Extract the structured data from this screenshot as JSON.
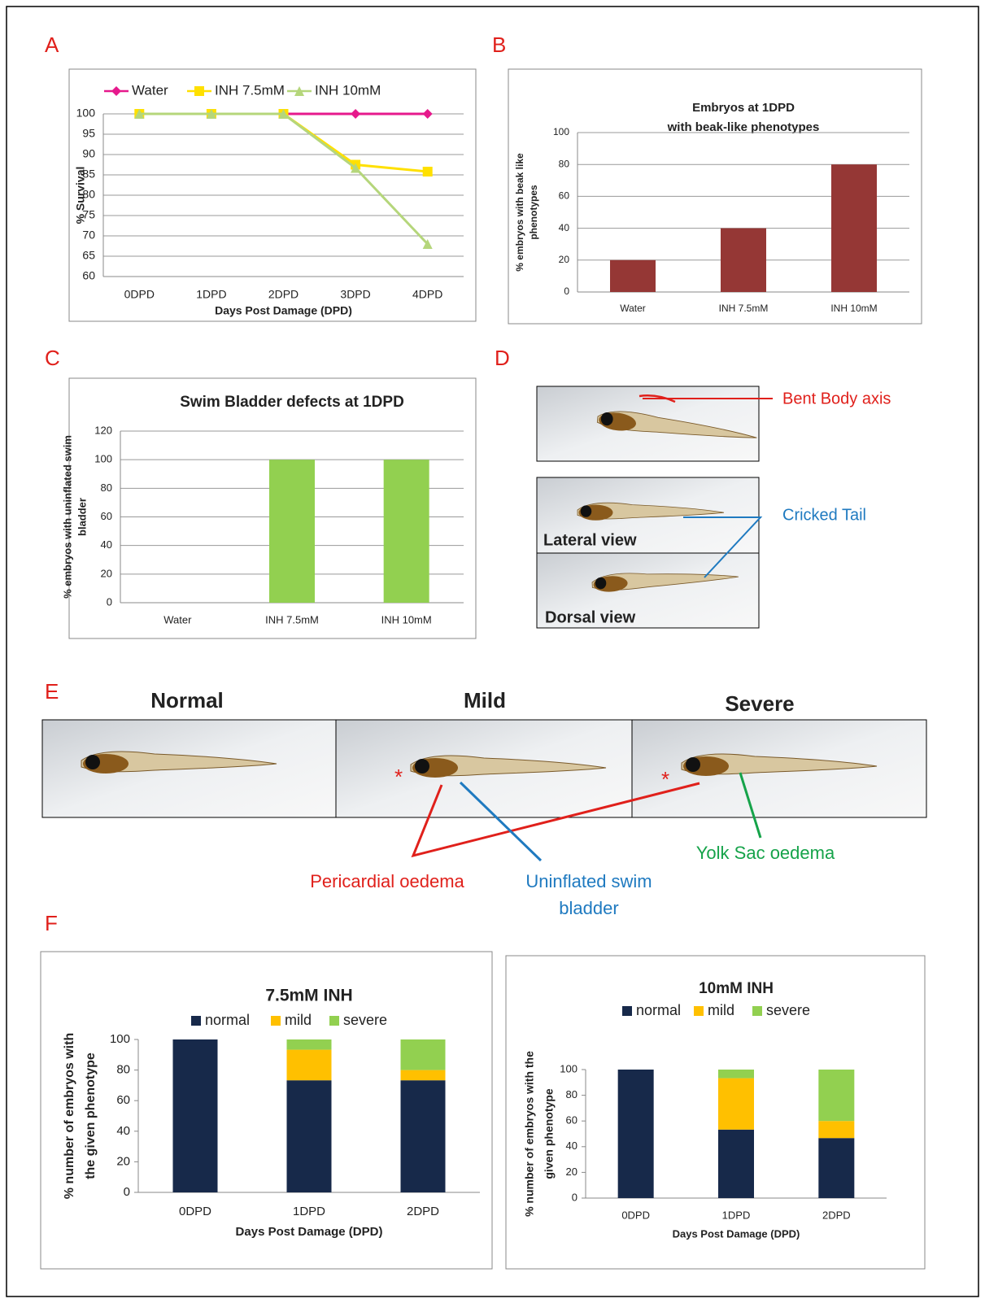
{
  "panel_labels": [
    "A",
    "B",
    "C",
    "D",
    "E",
    "F"
  ],
  "chart_data": [
    {
      "type": "line",
      "categories": [
        "0DPD",
        "1DPD",
        "2DPD",
        "3DPD",
        "4DPD"
      ],
      "series": [
        {
          "name": "Water",
          "color": "#e6198c",
          "marker": "diamond",
          "values": [
            100,
            100,
            100,
            100,
            100
          ]
        },
        {
          "name": "INH 7.5mM",
          "color": "#ffe000",
          "marker": "square",
          "values": [
            100,
            100,
            100,
            87.5,
            85.8
          ]
        },
        {
          "name": "INH 10mM",
          "color": "#b5d67b",
          "marker": "triangle",
          "values": [
            100,
            100,
            100,
            86.7,
            68
          ]
        }
      ],
      "ylim": [
        60,
        100
      ],
      "yticks": [
        60,
        65,
        70,
        75,
        80,
        85,
        90,
        95,
        100
      ],
      "ylabel": "% Survival",
      "xlabel": "Days Post Damage (DPD)",
      "grid": true,
      "legend": "top"
    },
    {
      "type": "bar",
      "title": [
        "Embryos at 1DPD",
        "with beak-like phenotypes"
      ],
      "categories": [
        "Water",
        "INH 7.5mM",
        "INH 10mM"
      ],
      "values": [
        20,
        40,
        80
      ],
      "color": "#953735",
      "ylim": [
        0,
        100
      ],
      "yticks": [
        0,
        20,
        40,
        60,
        80,
        100
      ],
      "ylabel": [
        "% embryos with beak like",
        "phenotypes"
      ],
      "grid": true
    },
    {
      "type": "bar",
      "title": "Swim Bladder defects at 1DPD",
      "categories": [
        "Water",
        "INH 7.5mM",
        "INH 10mM"
      ],
      "values": [
        0,
        100,
        100
      ],
      "color": "#92d050",
      "ylim": [
        0,
        120
      ],
      "yticks": [
        0,
        20,
        40,
        60,
        80,
        100,
        120
      ],
      "ylabel": [
        "% embryos with uninflated swim",
        "bladder"
      ],
      "grid": true
    },
    {
      "type": "stacked-bar",
      "title": "7.5mM INH",
      "categories": [
        "0DPD",
        "1DPD",
        "2DPD"
      ],
      "series": [
        {
          "name": "normal",
          "color": "#17294a",
          "values": [
            100,
            73.3,
            73.3
          ]
        },
        {
          "name": "mild",
          "color": "#ffc000",
          "values": [
            0,
            20,
            6.7
          ]
        },
        {
          "name": "severe",
          "color": "#92d050",
          "values": [
            0,
            6.7,
            20
          ]
        }
      ],
      "ylim": [
        0,
        100
      ],
      "yticks": [
        0,
        20,
        40,
        60,
        80,
        100
      ],
      "ylabel": [
        "% number of embryos with",
        "the given phenotype"
      ],
      "xlabel": "Days Post Damage (DPD)",
      "grid": false,
      "legend": "top"
    },
    {
      "type": "stacked-bar",
      "title": "10mM INH",
      "categories": [
        "0DPD",
        "1DPD",
        "2DPD"
      ],
      "series": [
        {
          "name": "normal",
          "color": "#17294a",
          "values": [
            100,
            53.3,
            46.7
          ]
        },
        {
          "name": "mild",
          "color": "#ffc000",
          "values": [
            0,
            40,
            13.3
          ]
        },
        {
          "name": "severe",
          "color": "#92d050",
          "values": [
            0,
            6.7,
            40
          ]
        }
      ],
      "ylim": [
        0,
        100
      ],
      "yticks": [
        0,
        20,
        40,
        60,
        80,
        100
      ],
      "ylabel": [
        "% number of embryos with the",
        "given phenotype"
      ],
      "xlabel": "Days Post Damage (DPD)",
      "grid": false,
      "legend": "top"
    }
  ],
  "photos": {
    "D": {
      "annotations": [
        "Bent Body axis",
        "Cricked Tail"
      ],
      "views": [
        "Lateral view",
        "Dorsal view"
      ]
    },
    "E": {
      "titles": [
        "Normal",
        "Mild",
        "Severe"
      ],
      "asterisks": [
        "*",
        "*"
      ],
      "annotations": [
        "Pericardial oedema",
        [
          "Uninflated swim",
          "bladder"
        ],
        "Yolk Sac oedema"
      ]
    }
  }
}
